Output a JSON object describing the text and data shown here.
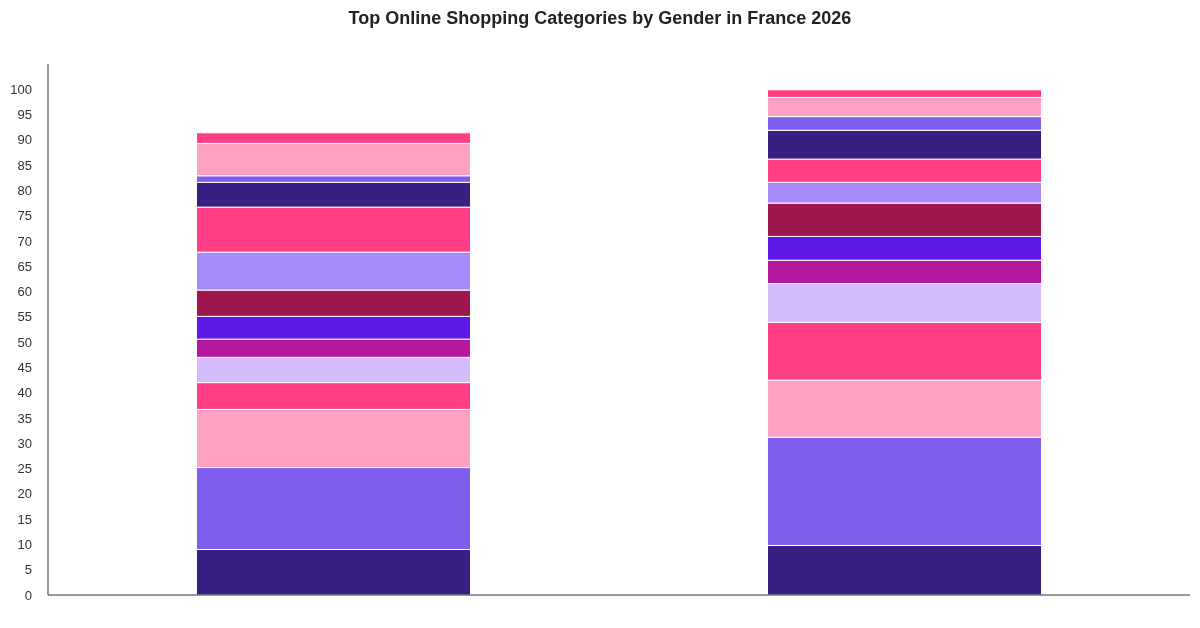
{
  "chart_data": {
    "type": "bar",
    "title": "Top Online Shopping Categories by Gender in France 2026",
    "categories": [
      null,
      null
    ],
    "stacked": true,
    "ylim": [
      0,
      105
    ],
    "yticks": [
      0,
      5,
      10,
      15,
      20,
      25,
      30,
      35,
      40,
      45,
      50,
      55,
      60,
      65,
      70,
      75,
      80,
      85,
      90,
      95,
      100
    ],
    "series": [
      {
        "color": "#371f83",
        "values": [
          9.0,
          9.8
        ]
      },
      {
        "color": "#7f5eed",
        "values": [
          16.2,
          21.4
        ]
      },
      {
        "color": "#ffa1c3",
        "values": [
          11.5,
          11.3
        ]
      },
      {
        "color": "#ff3e85",
        "values": [
          5.3,
          11.4
        ]
      },
      {
        "color": "#d5bcfa",
        "values": [
          5.0,
          7.7
        ]
      },
      {
        "color": "#b5179e",
        "values": [
          3.6,
          4.6
        ]
      },
      {
        "color": "#5f17e9",
        "values": [
          4.5,
          4.7
        ]
      },
      {
        "color": "#9d174d",
        "values": [
          5.2,
          6.6
        ]
      },
      {
        "color": "#a78bfa",
        "values": [
          7.5,
          4.1
        ]
      },
      {
        "color": "#ff3e85",
        "values": [
          8.9,
          4.6
        ]
      },
      {
        "color": "#371f83",
        "values": [
          4.9,
          5.7
        ]
      },
      {
        "color": "#7f5eed",
        "values": [
          1.3,
          2.7
        ]
      },
      {
        "color": "#ffa1c3",
        "values": [
          6.4,
          3.8
        ]
      },
      {
        "color": "#ff3e85",
        "values": [
          2.1,
          1.5
        ]
      }
    ]
  }
}
